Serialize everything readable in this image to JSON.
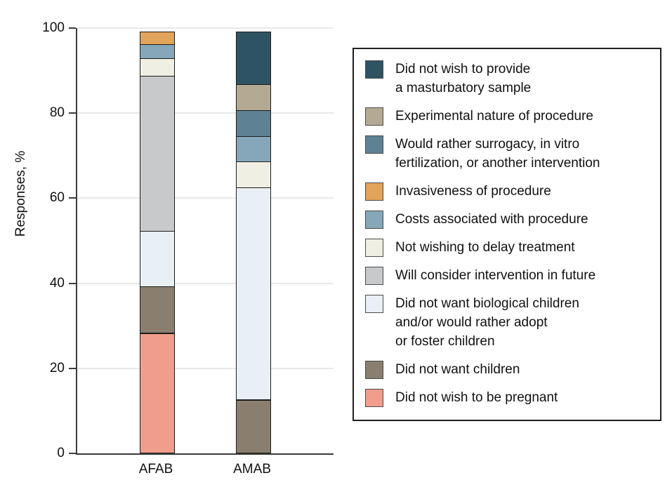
{
  "chart_data": {
    "type": "bar",
    "subtype": "stacked-vertical",
    "title": "",
    "ylabel": "Responses, %",
    "xlabel": "",
    "ylim": [
      0,
      100
    ],
    "yticks": [
      0,
      20,
      40,
      60,
      80,
      100
    ],
    "grid": "horizontal",
    "legend_position": "right",
    "categories": [
      "AFAB",
      "AMAB"
    ],
    "series": [
      {
        "name": "Did not wish to provide a masturbatory sample",
        "lines": [
          "Did not wish to provide",
          "a masturbatory sample"
        ],
        "color": "#2e5464",
        "values": [
          0,
          12.5
        ]
      },
      {
        "name": "Experimental nature of procedure",
        "lines": [
          "Experimental nature of procedure"
        ],
        "color": "#b4aa94",
        "values": [
          0,
          6.25
        ]
      },
      {
        "name": "Would rather surrogacy, in vitro fertilization, or another intervention",
        "lines": [
          "Would rather surrogacy, in vitro",
          "fertilization, or another intervention"
        ],
        "color": "#5e8294",
        "values": [
          0,
          6.25
        ]
      },
      {
        "name": "Invasiveness of procedure",
        "lines": [
          "Invasiveness of procedure"
        ],
        "color": "#e2a35a",
        "values": [
          3.2,
          0
        ]
      },
      {
        "name": "Costs associated with procedure",
        "lines": [
          "Costs associated with procedure"
        ],
        "color": "#86a7b9",
        "values": [
          3.4,
          6.25
        ]
      },
      {
        "name": "Not wishing to delay treatment",
        "lines": [
          "Not wishing to delay treatment"
        ],
        "color": "#efefe3",
        "values": [
          4.3,
          6.25
        ]
      },
      {
        "name": "Will consider intervention in future",
        "lines": [
          "Will consider intervention in future"
        ],
        "color": "#c8c9ca",
        "values": [
          36.7,
          0
        ]
      },
      {
        "name": "Did not want biological children and/or would rather adopt or foster children",
        "lines": [
          "Did not want biological children",
          "and/or would rather adopt",
          "or foster children"
        ],
        "color": "#e8f0f5",
        "values": [
          13.2,
          50
        ]
      },
      {
        "name": "Did not want children",
        "lines": [
          "Did not want children"
        ],
        "color": "#8a7f6f",
        "values": [
          11.0,
          12.5
        ]
      },
      {
        "name": "Did not wish to be pregnant",
        "lines": [
          "Did not wish to be pregnant"
        ],
        "color": "#f19d8b",
        "values": [
          28.2,
          0
        ]
      }
    ]
  }
}
